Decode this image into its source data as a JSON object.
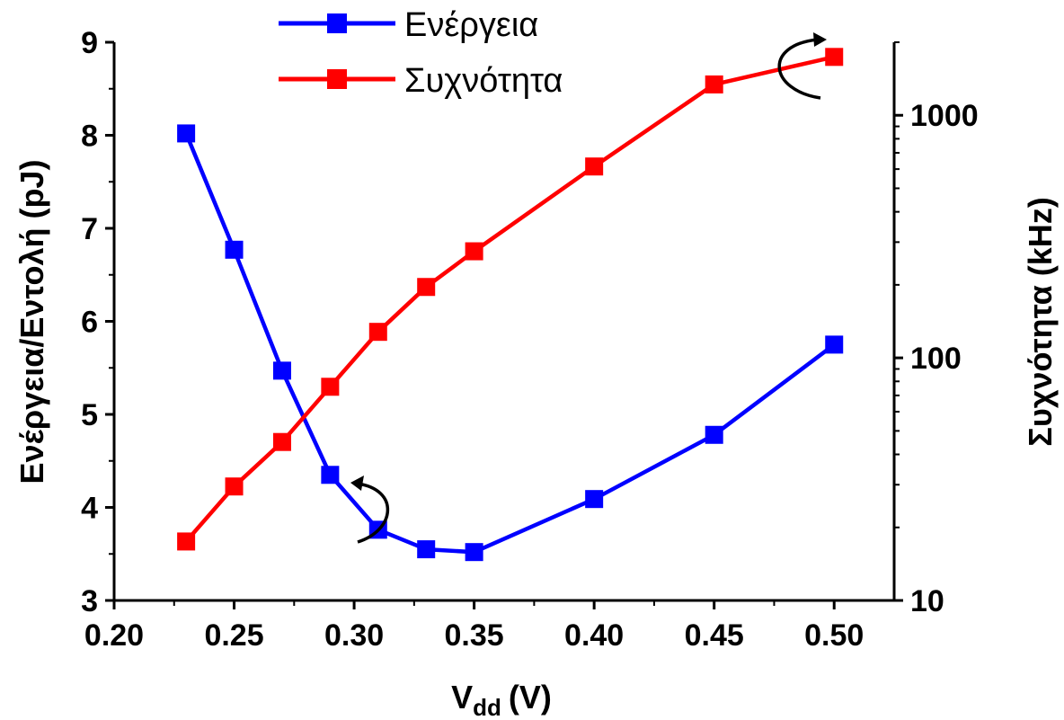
{
  "chart_data": {
    "type": "line",
    "title": "",
    "x": [
      0.23,
      0.25,
      0.27,
      0.29,
      0.31,
      0.33,
      0.35,
      0.4,
      0.45,
      0.5
    ],
    "xlabel": "V",
    "xlabel_sub": "dd",
    "xlabel_unit": "(V)",
    "xlim": [
      0.2,
      0.525
    ],
    "xticks": [
      "0.20",
      "0.25",
      "0.30",
      "0.35",
      "0.40",
      "0.45",
      "0.50"
    ],
    "y_left": {
      "label": "Ενέργεια/Εντολή (pJ)",
      "lim": [
        3,
        9
      ],
      "ticks": [
        "3",
        "4",
        "5",
        "6",
        "7",
        "8",
        "9"
      ]
    },
    "y_right": {
      "label": "Συχνότητα (kHz)",
      "scale": "log",
      "lim": [
        10,
        2000
      ],
      "ticks": [
        "10",
        "100",
        "1000"
      ]
    },
    "series": [
      {
        "name": "Ενέργεια",
        "axis": "left",
        "color": "#0000ff",
        "marker": "square",
        "values": [
          8.02,
          6.77,
          5.47,
          4.35,
          3.76,
          3.55,
          3.52,
          4.09,
          4.78,
          5.75
        ]
      },
      {
        "name": "Συχνότητα",
        "axis": "right",
        "color": "#ff0000",
        "marker": "square",
        "values": [
          17.5,
          29.5,
          45,
          76,
          128,
          196,
          275,
          615,
          1340,
          1740
        ]
      }
    ],
    "legend_position": "top-left",
    "grid": false
  }
}
